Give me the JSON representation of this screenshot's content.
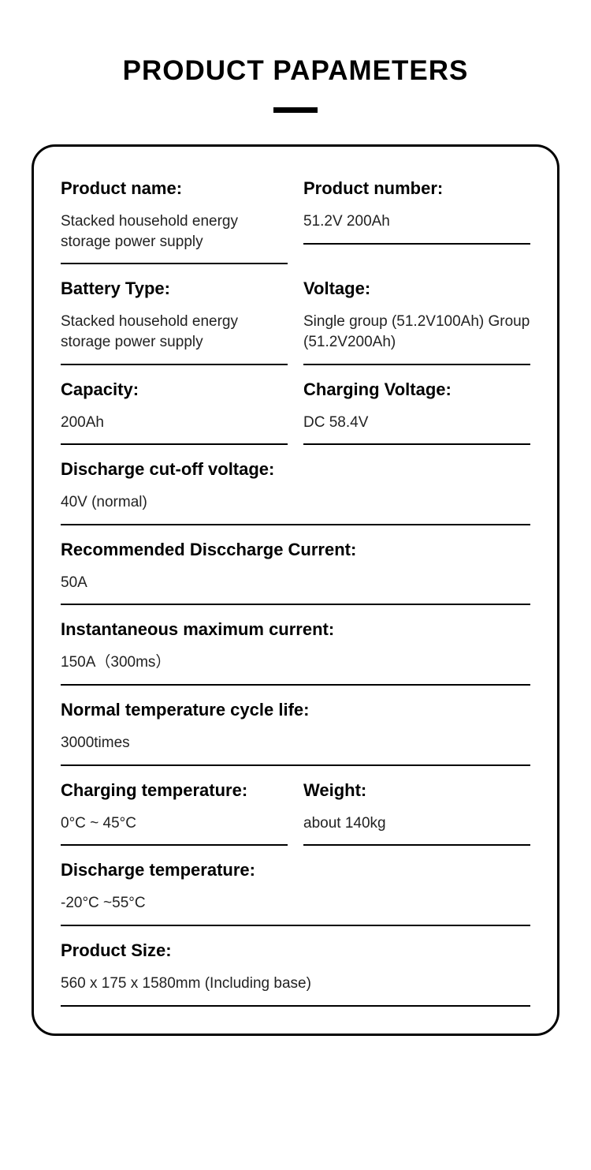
{
  "title": "PRODUCT PAPAMETERS",
  "specs": {
    "product_name": {
      "label": "Product name:",
      "value": "Stacked household energy storage power supply"
    },
    "product_number": {
      "label": "Product number:",
      "value": "51.2V 200Ah"
    },
    "battery_type": {
      "label": "Battery Type:",
      "value": "Stacked household energy storage power supply"
    },
    "voltage": {
      "label": "Voltage:",
      "value": "Single group (51.2V100Ah) Group (51.2V200Ah)"
    },
    "capacity": {
      "label": "Capacity:",
      "value": "200Ah"
    },
    "charging_voltage": {
      "label": "Charging Voltage:",
      "value": "DC 58.4V"
    },
    "discharge_cutoff": {
      "label": "Discharge cut-off voltage:",
      "value": "40V (normal)"
    },
    "rec_discharge_current": {
      "label": "Recommended Disccharge Current:",
      "value": "50A"
    },
    "inst_max_current": {
      "label": "Instantaneous maximum current:",
      "value": "150A（300ms）"
    },
    "cycle_life": {
      "label": "Normal temperature cycle life:",
      "value": "3000times"
    },
    "charging_temp": {
      "label": "Charging temperature:",
      "value": "0°C ~ 45°C"
    },
    "weight": {
      "label": "Weight:",
      "value": "about 140kg"
    },
    "discharge_temp": {
      "label": "Discharge temperature:",
      "value": "-20°C ~55°C"
    },
    "product_size": {
      "label": "Product Size:",
      "value": "560 x 175 x 1580mm (Including base)"
    }
  },
  "colors": {
    "background": "#ffffff",
    "text": "#000000",
    "border": "#000000"
  }
}
